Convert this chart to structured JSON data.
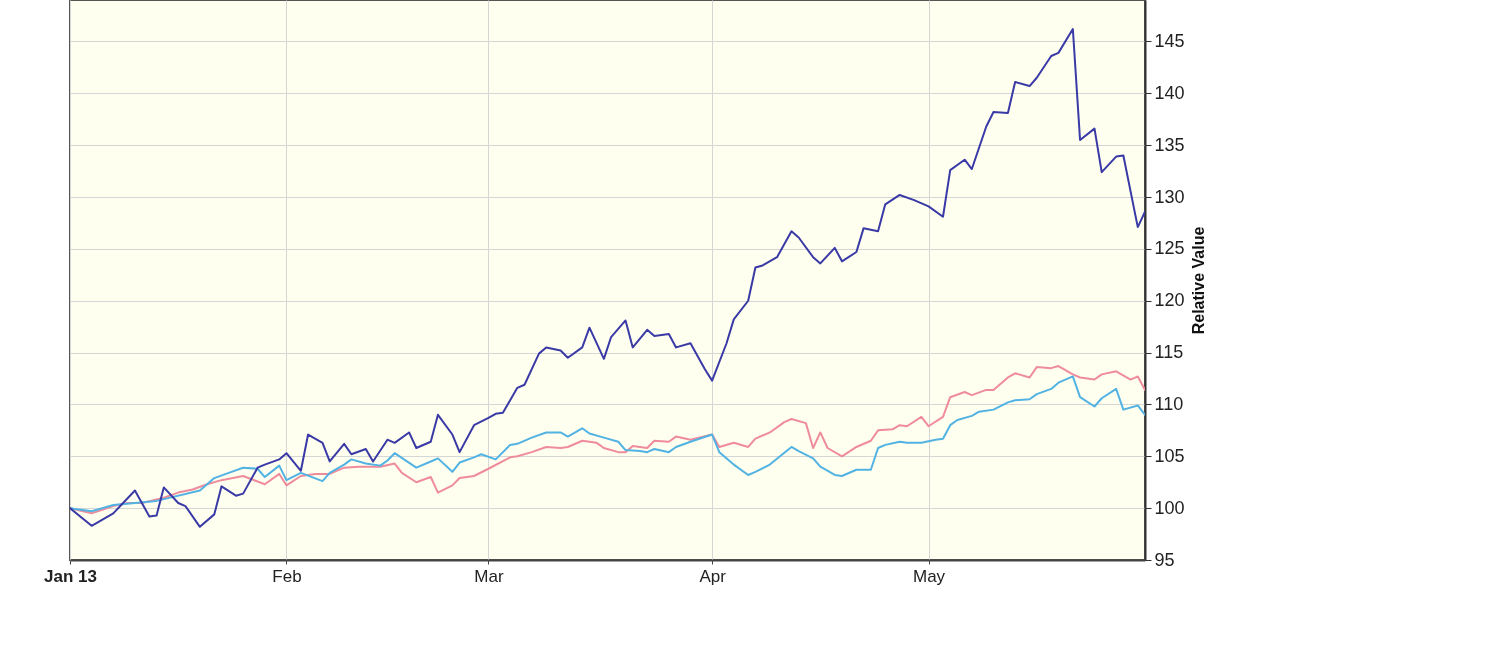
{
  "chart_data": {
    "type": "line",
    "ylabel": "Relative Value",
    "xlim": [
      "2013-01-02",
      "2013-05-31"
    ],
    "xticks": [
      {
        "value": "2013-01-02",
        "label": "Jan 13"
      },
      {
        "value": "2013-02-01",
        "label": "Feb"
      },
      {
        "value": "2013-03-01",
        "label": "Mar"
      },
      {
        "value": "2013-04-01",
        "label": "Apr"
      },
      {
        "value": "2013-05-01",
        "label": "May"
      }
    ],
    "ylim": [
      95,
      149
    ],
    "yticks": [
      95,
      100,
      105,
      110,
      115,
      120,
      125,
      130,
      135,
      140,
      145
    ],
    "grid": true,
    "series": [
      {
        "color": "#3a3aa6",
        "x": [
          "2013-01-02",
          "2013-01-05",
          "2013-01-08",
          "2013-01-11",
          "2013-01-13",
          "2013-01-14",
          "2013-01-15",
          "2013-01-17",
          "2013-01-18",
          "2013-01-20",
          "2013-01-22",
          "2013-01-23",
          "2013-01-25",
          "2013-01-26",
          "2013-01-28",
          "2013-01-29",
          "2013-01-31",
          "2013-02-01",
          "2013-02-03",
          "2013-02-04",
          "2013-02-06",
          "2013-02-07",
          "2013-02-09",
          "2013-02-10",
          "2013-02-12",
          "2013-02-13",
          "2013-02-15",
          "2013-02-16",
          "2013-02-18",
          "2013-02-19",
          "2013-02-21",
          "2013-02-22",
          "2013-02-24",
          "2013-02-25",
          "2013-02-27",
          "2013-03-01",
          "2013-03-02",
          "2013-03-03",
          "2013-03-05",
          "2013-03-06",
          "2013-03-08",
          "2013-03-09",
          "2013-03-11",
          "2013-03-12",
          "2013-03-14",
          "2013-03-15",
          "2013-03-17",
          "2013-03-18",
          "2013-03-20",
          "2013-03-21",
          "2013-03-23",
          "2013-03-24",
          "2013-03-26",
          "2013-03-27",
          "2013-03-29",
          "2013-03-31",
          "2013-04-01",
          "2013-04-03",
          "2013-04-04",
          "2013-04-06",
          "2013-04-07",
          "2013-04-08",
          "2013-04-10",
          "2013-04-12",
          "2013-04-13",
          "2013-04-15",
          "2013-04-16",
          "2013-04-18",
          "2013-04-19",
          "2013-04-21",
          "2013-04-22",
          "2013-04-24",
          "2013-04-25",
          "2013-04-27",
          "2013-04-29",
          "2013-05-01",
          "2013-05-03",
          "2013-05-04",
          "2013-05-06",
          "2013-05-07",
          "2013-05-09",
          "2013-05-10",
          "2013-05-12",
          "2013-05-13",
          "2013-05-15",
          "2013-05-16",
          "2013-05-18",
          "2013-05-19",
          "2013-05-21",
          "2013-05-22",
          "2013-05-24",
          "2013-05-25",
          "2013-05-27",
          "2013-05-28",
          "2013-05-30",
          "2013-05-31"
        ],
        "values": [
          100,
          98.3,
          99.5,
          101.7,
          99.2,
          99.3,
          102.0,
          100.5,
          100.2,
          98.2,
          99.4,
          102.1,
          101.2,
          101.4,
          103.9,
          104.2,
          104.7,
          105.3,
          103.6,
          107.1,
          106.3,
          104.5,
          106.2,
          105.2,
          105.7,
          104.5,
          106.6,
          106.3,
          107.3,
          105.8,
          106.4,
          109.0,
          107.1,
          105.4,
          108.0,
          108.7,
          109.1,
          109.2,
          111.6,
          111.9,
          114.9,
          115.5,
          115.2,
          114.5,
          115.5,
          117.4,
          114.4,
          116.5,
          118.1,
          115.5,
          117.2,
          116.6,
          116.8,
          115.5,
          115.9,
          113.4,
          112.3,
          115.9,
          118.2,
          120.0,
          123.2,
          123.4,
          124.2,
          126.7,
          126.1,
          124.2,
          123.6,
          125.1,
          123.8,
          124.7,
          127.0,
          126.7,
          129.3,
          130.2,
          129.7,
          129.1,
          128.1,
          132.6,
          133.6,
          132.7,
          136.8,
          138.2,
          138.1,
          141.1,
          140.7,
          141.5,
          143.6,
          143.9,
          146.2,
          135.5,
          136.6,
          132.4,
          133.9,
          134.0,
          127.1,
          128.6
        ]
      },
      {
        "color": "#52b3e3",
        "x": [
          "2013-01-02",
          "2013-01-05",
          "2013-01-08",
          "2013-01-14",
          "2013-01-20",
          "2013-01-22",
          "2013-01-24",
          "2013-01-26",
          "2013-01-28",
          "2013-01-29",
          "2013-01-31",
          "2013-02-01",
          "2013-02-03",
          "2013-02-06",
          "2013-02-07",
          "2013-02-09",
          "2013-02-10",
          "2013-02-12",
          "2013-02-14",
          "2013-02-15",
          "2013-02-16",
          "2013-02-19",
          "2013-02-21",
          "2013-02-22",
          "2013-02-24",
          "2013-02-25",
          "2013-02-27",
          "2013-02-28",
          "2013-03-02",
          "2013-03-04",
          "2013-03-05",
          "2013-03-07",
          "2013-03-09",
          "2013-03-11",
          "2013-03-12",
          "2013-03-14",
          "2013-03-15",
          "2013-03-17",
          "2013-03-19",
          "2013-03-20",
          "2013-03-22",
          "2013-03-23",
          "2013-03-24",
          "2013-03-26",
          "2013-03-27",
          "2013-03-29",
          "2013-04-01",
          "2013-04-02",
          "2013-04-04",
          "2013-04-06",
          "2013-04-07",
          "2013-04-09",
          "2013-04-12",
          "2013-04-13",
          "2013-04-15",
          "2013-04-16",
          "2013-04-18",
          "2013-04-19",
          "2013-04-21",
          "2013-04-23",
          "2013-04-24",
          "2013-04-25",
          "2013-04-27",
          "2013-04-28",
          "2013-04-30",
          "2013-05-02",
          "2013-05-03",
          "2013-05-04",
          "2013-05-05",
          "2013-05-07",
          "2013-05-08",
          "2013-05-10",
          "2013-05-12",
          "2013-05-13",
          "2013-05-15",
          "2013-05-16",
          "2013-05-18",
          "2013-05-19",
          "2013-05-21",
          "2013-05-22",
          "2013-05-24",
          "2013-05-25",
          "2013-05-27",
          "2013-05-28",
          "2013-05-30",
          "2013-05-31"
        ],
        "values": [
          100.0,
          99.7,
          100.3,
          100.7,
          101.7,
          102.9,
          103.4,
          103.9,
          103.8,
          103.0,
          104.1,
          102.7,
          103.4,
          102.6,
          103.4,
          104.2,
          104.7,
          104.3,
          104.1,
          104.6,
          105.3,
          103.9,
          104.5,
          104.8,
          103.5,
          104.4,
          104.9,
          105.2,
          104.7,
          106.1,
          106.2,
          106.8,
          107.3,
          107.3,
          106.9,
          107.7,
          107.2,
          106.8,
          106.4,
          105.6,
          105.5,
          105.4,
          105.7,
          105.4,
          105.9,
          106.4,
          107.1,
          105.4,
          104.2,
          103.2,
          103.5,
          104.2,
          105.9,
          105.5,
          104.8,
          104.0,
          103.2,
          103.1,
          103.7,
          103.7,
          105.8,
          106.1,
          106.4,
          106.3,
          106.3,
          106.6,
          106.7,
          108.0,
          108.5,
          108.9,
          109.3,
          109.5,
          110.2,
          110.4,
          110.5,
          111.0,
          111.5,
          112.1,
          112.7,
          110.7,
          109.8,
          110.6,
          111.5,
          109.5,
          109.9,
          109.0
        ]
      },
      {
        "color": "#ef8c9c",
        "x": [
          "2013-01-02",
          "2013-01-05",
          "2013-01-08",
          "2013-01-10",
          "2013-01-12",
          "2013-01-15",
          "2013-01-17",
          "2013-01-19",
          "2013-01-21",
          "2013-01-23",
          "2013-01-26",
          "2013-01-29",
          "2013-01-31",
          "2013-02-01",
          "2013-02-03",
          "2013-02-05",
          "2013-02-07",
          "2013-02-09",
          "2013-02-11",
          "2013-02-14",
          "2013-02-16",
          "2013-02-17",
          "2013-02-19",
          "2013-02-21",
          "2013-02-22",
          "2013-02-24",
          "2013-02-25",
          "2013-02-27",
          "2013-03-01",
          "2013-03-04",
          "2013-03-05",
          "2013-03-07",
          "2013-03-09",
          "2013-03-11",
          "2013-03-12",
          "2013-03-14",
          "2013-03-16",
          "2013-03-17",
          "2013-03-19",
          "2013-03-20",
          "2013-03-21",
          "2013-03-23",
          "2013-03-24",
          "2013-03-26",
          "2013-03-27",
          "2013-03-29",
          "2013-04-01",
          "2013-04-02",
          "2013-04-04",
          "2013-04-06",
          "2013-04-07",
          "2013-04-09",
          "2013-04-11",
          "2013-04-12",
          "2013-04-14",
          "2013-04-15",
          "2013-04-16",
          "2013-04-17",
          "2013-04-19",
          "2013-04-21",
          "2013-04-23",
          "2013-04-24",
          "2013-04-26",
          "2013-04-27",
          "2013-04-28",
          "2013-04-30",
          "2013-05-01",
          "2013-05-03",
          "2013-05-04",
          "2013-05-06",
          "2013-05-07",
          "2013-05-09",
          "2013-05-10",
          "2013-05-12",
          "2013-05-13",
          "2013-05-15",
          "2013-05-16",
          "2013-05-18",
          "2013-05-19",
          "2013-05-21",
          "2013-05-22",
          "2013-05-24",
          "2013-05-25",
          "2013-05-27",
          "2013-05-29",
          "2013-05-30",
          "2013-05-31"
        ],
        "values": [
          100.0,
          99.5,
          100.2,
          100.5,
          100.5,
          101.0,
          101.5,
          101.8,
          102.3,
          102.7,
          103.1,
          102.3,
          103.3,
          102.2,
          103.1,
          103.3,
          103.3,
          103.9,
          104.0,
          104.0,
          104.3,
          103.4,
          102.5,
          103.0,
          101.5,
          102.2,
          102.9,
          103.1,
          103.8,
          104.9,
          105.0,
          105.4,
          105.9,
          105.8,
          105.9,
          106.5,
          106.3,
          105.8,
          105.4,
          105.4,
          106.0,
          105.8,
          106.5,
          106.4,
          106.9,
          106.6,
          107.1,
          105.9,
          106.3,
          105.9,
          106.7,
          107.3,
          108.3,
          108.6,
          108.2,
          105.8,
          107.3,
          105.8,
          105.0,
          105.9,
          106.5,
          107.5,
          107.6,
          108.0,
          107.9,
          108.8,
          107.9,
          108.8,
          110.7,
          111.2,
          110.9,
          111.4,
          111.4,
          112.6,
          113.0,
          112.6,
          113.6,
          113.5,
          113.7,
          112.9,
          112.6,
          112.4,
          112.9,
          113.2,
          112.4,
          112.7,
          111.4
        ]
      }
    ]
  }
}
